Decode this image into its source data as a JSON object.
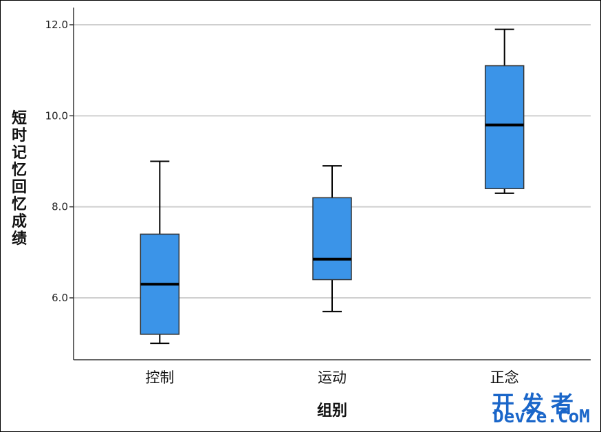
{
  "chart_data": {
    "type": "boxplot",
    "xlabel": "组别",
    "ylabel": "短时记忆回忆成绩",
    "ylim": [
      5.2,
      12.35
    ],
    "yticks": [
      6.0,
      8.0,
      10.0,
      12.0
    ],
    "ytick_labels": [
      "6.0",
      "8.0",
      "10.0",
      "12.0"
    ],
    "grid": true,
    "box_color": "#3b94e8",
    "categories": [
      "控制",
      "运动",
      "正念"
    ],
    "boxes": [
      {
        "category": "控制",
        "min": 5.0,
        "q1": 5.2,
        "median": 6.3,
        "q3": 7.4,
        "max": 9.0
      },
      {
        "category": "运动",
        "min": 5.7,
        "q1": 6.4,
        "median": 6.85,
        "q3": 8.2,
        "max": 8.9
      },
      {
        "category": "正念",
        "min": 8.3,
        "q1": 8.4,
        "median": 9.8,
        "q3": 11.1,
        "max": 11.9
      }
    ]
  },
  "watermark": {
    "line1": "开发者",
    "line2": "DevZe.CoM"
  }
}
